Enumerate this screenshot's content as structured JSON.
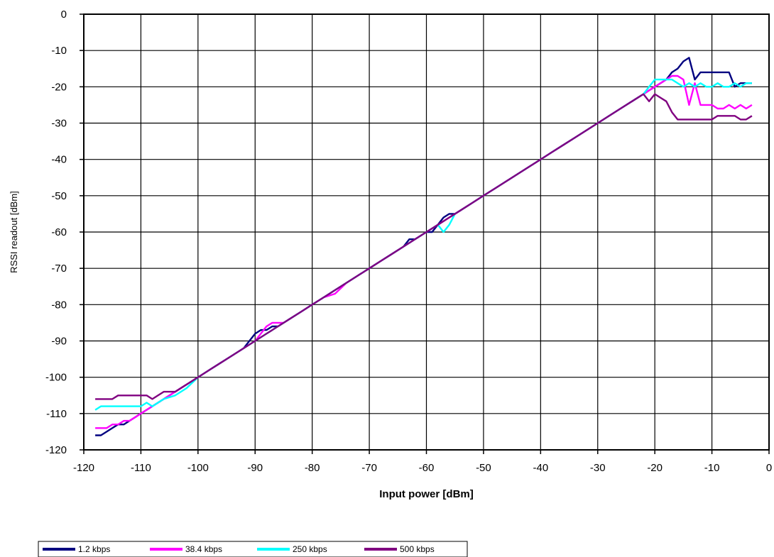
{
  "chart_data": {
    "type": "line",
    "xlabel": "Input power [dBm]",
    "ylabel": "RSSI readout [dBm]",
    "xlim": [
      -120,
      0
    ],
    "ylim": [
      -120,
      0
    ],
    "x_ticks": [
      -120,
      -110,
      -100,
      -90,
      -80,
      -70,
      -60,
      -50,
      -40,
      -30,
      -20,
      -10,
      0
    ],
    "y_ticks": [
      0,
      -10,
      -20,
      -30,
      -40,
      -50,
      -60,
      -70,
      -80,
      -90,
      -100,
      -110,
      -120
    ],
    "x_tick_labels": [
      "-120",
      "-110",
      "-100",
      "-90",
      "-80",
      "-70",
      "-60",
      "-50",
      "-40",
      "-30",
      "-20",
      "-10",
      "0"
    ],
    "y_tick_labels": [
      "0",
      "-10",
      "-20",
      "-30",
      "-40",
      "-50",
      "-60",
      "-70",
      "-80",
      "-90",
      "-100",
      "-110",
      "-120"
    ],
    "grid": true,
    "legend_position": "bottom-left",
    "series": [
      {
        "name": "1.2 kbps",
        "color": "#000080",
        "points": [
          [
            -118,
            -116
          ],
          [
            -117,
            -116
          ],
          [
            -116,
            -115
          ],
          [
            -115,
            -114
          ],
          [
            -114,
            -113
          ],
          [
            -113,
            -113
          ],
          [
            -112,
            -112
          ],
          [
            -111,
            -111
          ],
          [
            -110,
            -110
          ],
          [
            -108,
            -108
          ],
          [
            -106,
            -106
          ],
          [
            -104,
            -104
          ],
          [
            -102,
            -102
          ],
          [
            -100,
            -100
          ],
          [
            -98,
            -98
          ],
          [
            -96,
            -96
          ],
          [
            -94,
            -94
          ],
          [
            -92,
            -92
          ],
          [
            -91,
            -90
          ],
          [
            -90,
            -88
          ],
          [
            -89,
            -87
          ],
          [
            -88,
            -87
          ],
          [
            -87,
            -86
          ],
          [
            -86,
            -86
          ],
          [
            -85,
            -85
          ],
          [
            -84,
            -84
          ],
          [
            -82,
            -82
          ],
          [
            -80,
            -80
          ],
          [
            -78,
            -78
          ],
          [
            -76,
            -76
          ],
          [
            -74,
            -74
          ],
          [
            -72,
            -72
          ],
          [
            -70,
            -70
          ],
          [
            -68,
            -68
          ],
          [
            -66,
            -66
          ],
          [
            -64,
            -64
          ],
          [
            -63,
            -62
          ],
          [
            -62,
            -62
          ],
          [
            -61,
            -61
          ],
          [
            -60,
            -60
          ],
          [
            -59,
            -60
          ],
          [
            -58,
            -58
          ],
          [
            -57,
            -56
          ],
          [
            -56,
            -55
          ],
          [
            -55,
            -55
          ],
          [
            -54,
            -54
          ],
          [
            -52,
            -52
          ],
          [
            -50,
            -50
          ],
          [
            -48,
            -48
          ],
          [
            -46,
            -46
          ],
          [
            -44,
            -44
          ],
          [
            -42,
            -42
          ],
          [
            -40,
            -40
          ],
          [
            -38,
            -38
          ],
          [
            -36,
            -36
          ],
          [
            -34,
            -34
          ],
          [
            -32,
            -32
          ],
          [
            -30,
            -30
          ],
          [
            -28,
            -28
          ],
          [
            -26,
            -26
          ],
          [
            -24,
            -24
          ],
          [
            -22,
            -22
          ],
          [
            -21,
            -21
          ],
          [
            -20,
            -20
          ],
          [
            -19,
            -19
          ],
          [
            -18,
            -18
          ],
          [
            -17,
            -16
          ],
          [
            -16,
            -15
          ],
          [
            -15,
            -13
          ],
          [
            -14,
            -12
          ],
          [
            -13,
            -18
          ],
          [
            -12,
            -16
          ],
          [
            -11,
            -16
          ],
          [
            -10,
            -16
          ],
          [
            -9,
            -16
          ],
          [
            -8,
            -16
          ],
          [
            -7,
            -16
          ],
          [
            -6,
            -20
          ],
          [
            -5,
            -19
          ],
          [
            -4,
            -19
          ],
          [
            -3,
            -19
          ]
        ]
      },
      {
        "name": "38.4 kbps",
        "color": "#ff00ff",
        "points": [
          [
            -118,
            -114
          ],
          [
            -117,
            -114
          ],
          [
            -116,
            -114
          ],
          [
            -115,
            -113
          ],
          [
            -114,
            -113
          ],
          [
            -113,
            -112
          ],
          [
            -112,
            -112
          ],
          [
            -111,
            -111
          ],
          [
            -110,
            -110
          ],
          [
            -108,
            -108
          ],
          [
            -106,
            -106
          ],
          [
            -104,
            -104
          ],
          [
            -102,
            -102
          ],
          [
            -100,
            -100
          ],
          [
            -98,
            -98
          ],
          [
            -96,
            -96
          ],
          [
            -94,
            -94
          ],
          [
            -92,
            -92
          ],
          [
            -90,
            -90
          ],
          [
            -89,
            -88
          ],
          [
            -88,
            -86
          ],
          [
            -87,
            -85
          ],
          [
            -86,
            -85
          ],
          [
            -85,
            -85
          ],
          [
            -84,
            -84
          ],
          [
            -82,
            -82
          ],
          [
            -80,
            -80
          ],
          [
            -78,
            -78
          ],
          [
            -76,
            -77
          ],
          [
            -74,
            -74
          ],
          [
            -72,
            -72
          ],
          [
            -70,
            -70
          ],
          [
            -68,
            -68
          ],
          [
            -66,
            -66
          ],
          [
            -64,
            -64
          ],
          [
            -62,
            -62
          ],
          [
            -60,
            -60
          ],
          [
            -58,
            -58
          ],
          [
            -56,
            -56
          ],
          [
            -54,
            -54
          ],
          [
            -52,
            -52
          ],
          [
            -50,
            -50
          ],
          [
            -48,
            -48
          ],
          [
            -46,
            -46
          ],
          [
            -44,
            -44
          ],
          [
            -42,
            -42
          ],
          [
            -40,
            -40
          ],
          [
            -38,
            -38
          ],
          [
            -36,
            -36
          ],
          [
            -34,
            -34
          ],
          [
            -32,
            -32
          ],
          [
            -30,
            -30
          ],
          [
            -28,
            -28
          ],
          [
            -26,
            -26
          ],
          [
            -24,
            -24
          ],
          [
            -22,
            -22
          ],
          [
            -21,
            -21
          ],
          [
            -20,
            -20
          ],
          [
            -19,
            -19
          ],
          [
            -18,
            -18
          ],
          [
            -17,
            -17
          ],
          [
            -16,
            -17
          ],
          [
            -15,
            -18
          ],
          [
            -14,
            -25
          ],
          [
            -13,
            -19
          ],
          [
            -12,
            -25
          ],
          [
            -11,
            -25
          ],
          [
            -10,
            -25
          ],
          [
            -9,
            -26
          ],
          [
            -8,
            -26
          ],
          [
            -7,
            -25
          ],
          [
            -6,
            -26
          ],
          [
            -5,
            -25
          ],
          [
            -4,
            -26
          ],
          [
            -3,
            -25
          ]
        ]
      },
      {
        "name": "250 kbps",
        "color": "#00ffff",
        "points": [
          [
            -118,
            -109
          ],
          [
            -117,
            -108
          ],
          [
            -116,
            -108
          ],
          [
            -115,
            -108
          ],
          [
            -114,
            -108
          ],
          [
            -113,
            -108
          ],
          [
            -112,
            -108
          ],
          [
            -111,
            -108
          ],
          [
            -110,
            -108
          ],
          [
            -109,
            -107
          ],
          [
            -108,
            -108
          ],
          [
            -107,
            -107
          ],
          [
            -106,
            -106
          ],
          [
            -104,
            -105
          ],
          [
            -102,
            -103
          ],
          [
            -100,
            -100
          ],
          [
            -98,
            -98
          ],
          [
            -96,
            -96
          ],
          [
            -94,
            -94
          ],
          [
            -92,
            -92
          ],
          [
            -90,
            -90
          ],
          [
            -88,
            -88
          ],
          [
            -86,
            -86
          ],
          [
            -84,
            -84
          ],
          [
            -82,
            -82
          ],
          [
            -80,
            -80
          ],
          [
            -78,
            -78
          ],
          [
            -76,
            -76
          ],
          [
            -74,
            -74
          ],
          [
            -72,
            -72
          ],
          [
            -70,
            -70
          ],
          [
            -68,
            -68
          ],
          [
            -66,
            -66
          ],
          [
            -64,
            -64
          ],
          [
            -62,
            -62
          ],
          [
            -60,
            -60
          ],
          [
            -58,
            -58
          ],
          [
            -57,
            -60
          ],
          [
            -56,
            -58
          ],
          [
            -55,
            -55
          ],
          [
            -54,
            -54
          ],
          [
            -52,
            -52
          ],
          [
            -50,
            -50
          ],
          [
            -48,
            -48
          ],
          [
            -46,
            -46
          ],
          [
            -44,
            -44
          ],
          [
            -42,
            -42
          ],
          [
            -40,
            -40
          ],
          [
            -38,
            -38
          ],
          [
            -36,
            -36
          ],
          [
            -34,
            -34
          ],
          [
            -32,
            -32
          ],
          [
            -30,
            -30
          ],
          [
            -28,
            -28
          ],
          [
            -26,
            -26
          ],
          [
            -24,
            -24
          ],
          [
            -22,
            -22
          ],
          [
            -21,
            -20
          ],
          [
            -20,
            -18
          ],
          [
            -19,
            -18
          ],
          [
            -18,
            -18
          ],
          [
            -17,
            -18
          ],
          [
            -16,
            -19
          ],
          [
            -15,
            -20
          ],
          [
            -14,
            -19
          ],
          [
            -13,
            -20
          ],
          [
            -12,
            -19
          ],
          [
            -11,
            -20
          ],
          [
            -10,
            -20
          ],
          [
            -9,
            -19
          ],
          [
            -8,
            -20
          ],
          [
            -7,
            -20
          ],
          [
            -6,
            -19
          ],
          [
            -5,
            -20
          ],
          [
            -4,
            -19
          ],
          [
            -3,
            -19
          ]
        ]
      },
      {
        "name": "500 kbps",
        "color": "#800080",
        "points": [
          [
            -118,
            -106
          ],
          [
            -117,
            -106
          ],
          [
            -116,
            -106
          ],
          [
            -115,
            -106
          ],
          [
            -114,
            -105
          ],
          [
            -113,
            -105
          ],
          [
            -112,
            -105
          ],
          [
            -111,
            -105
          ],
          [
            -110,
            -105
          ],
          [
            -109,
            -105
          ],
          [
            -108,
            -106
          ],
          [
            -107,
            -105
          ],
          [
            -106,
            -104
          ],
          [
            -105,
            -104
          ],
          [
            -104,
            -104
          ],
          [
            -102,
            -102
          ],
          [
            -100,
            -100
          ],
          [
            -98,
            -98
          ],
          [
            -96,
            -96
          ],
          [
            -94,
            -94
          ],
          [
            -92,
            -92
          ],
          [
            -90,
            -90
          ],
          [
            -88,
            -88
          ],
          [
            -86,
            -86
          ],
          [
            -84,
            -84
          ],
          [
            -82,
            -82
          ],
          [
            -80,
            -80
          ],
          [
            -78,
            -78
          ],
          [
            -76,
            -76
          ],
          [
            -74,
            -74
          ],
          [
            -72,
            -72
          ],
          [
            -70,
            -70
          ],
          [
            -68,
            -68
          ],
          [
            -66,
            -66
          ],
          [
            -64,
            -64
          ],
          [
            -62,
            -62
          ],
          [
            -60,
            -60
          ],
          [
            -58,
            -58
          ],
          [
            -56,
            -56
          ],
          [
            -54,
            -54
          ],
          [
            -52,
            -52
          ],
          [
            -50,
            -50
          ],
          [
            -48,
            -48
          ],
          [
            -46,
            -46
          ],
          [
            -44,
            -44
          ],
          [
            -42,
            -42
          ],
          [
            -40,
            -40
          ],
          [
            -38,
            -38
          ],
          [
            -36,
            -36
          ],
          [
            -34,
            -34
          ],
          [
            -32,
            -32
          ],
          [
            -30,
            -30
          ],
          [
            -28,
            -28
          ],
          [
            -26,
            -26
          ],
          [
            -24,
            -24
          ],
          [
            -22,
            -22
          ],
          [
            -21,
            -24
          ],
          [
            -20,
            -22
          ],
          [
            -19,
            -23
          ],
          [
            -18,
            -24
          ],
          [
            -17,
            -27
          ],
          [
            -16,
            -29
          ],
          [
            -15,
            -29
          ],
          [
            -14,
            -29
          ],
          [
            -13,
            -29
          ],
          [
            -12,
            -29
          ],
          [
            -11,
            -29
          ],
          [
            -10,
            -29
          ],
          [
            -9,
            -28
          ],
          [
            -8,
            -28
          ],
          [
            -7,
            -28
          ],
          [
            -6,
            -28
          ],
          [
            -5,
            -29
          ],
          [
            -4,
            -29
          ],
          [
            -3,
            -28
          ]
        ]
      }
    ]
  }
}
